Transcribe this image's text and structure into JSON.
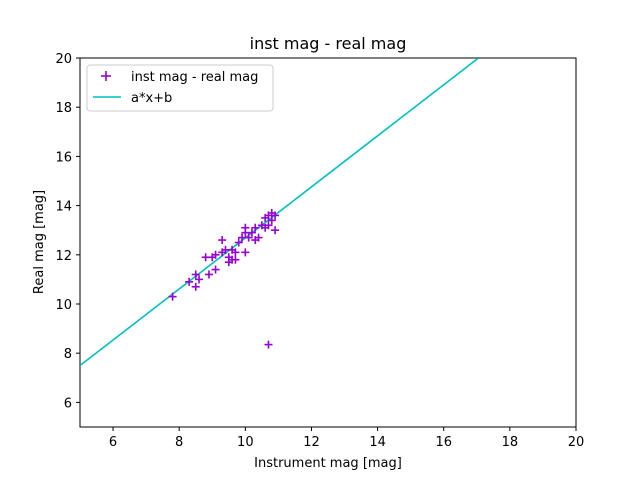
{
  "chart_data": {
    "type": "scatter",
    "title": "inst mag - real mag",
    "xlabel": "Instrument mag [mag]",
    "ylabel": "Real mag [mag]",
    "xlim": [
      5,
      20
    ],
    "ylim": [
      5,
      20
    ],
    "xticks": [
      6,
      8,
      10,
      12,
      14,
      16,
      18,
      20
    ],
    "yticks": [
      6,
      8,
      10,
      12,
      14,
      16,
      18,
      20
    ],
    "grid": false,
    "legend_position": "upper-left",
    "series": [
      {
        "name": "inst mag - real mag",
        "kind": "scatter",
        "marker": "plus",
        "color": "#9400d3",
        "points": [
          [
            7.8,
            10.3
          ],
          [
            8.3,
            10.9
          ],
          [
            8.5,
            11.2
          ],
          [
            8.5,
            10.7
          ],
          [
            8.6,
            11.0
          ],
          [
            8.8,
            11.9
          ],
          [
            8.9,
            11.2
          ],
          [
            9.0,
            11.9
          ],
          [
            9.1,
            12.0
          ],
          [
            9.1,
            11.4
          ],
          [
            9.3,
            12.1
          ],
          [
            9.3,
            12.6
          ],
          [
            9.4,
            12.2
          ],
          [
            9.5,
            11.9
          ],
          [
            9.5,
            11.7
          ],
          [
            9.6,
            12.2
          ],
          [
            9.6,
            11.8
          ],
          [
            9.7,
            12.1
          ],
          [
            9.7,
            11.8
          ],
          [
            9.8,
            12.5
          ],
          [
            9.9,
            12.7
          ],
          [
            10.0,
            12.9
          ],
          [
            10.0,
            13.1
          ],
          [
            10.0,
            12.1
          ],
          [
            10.1,
            12.7
          ],
          [
            10.2,
            12.9
          ],
          [
            10.3,
            13.1
          ],
          [
            10.3,
            12.6
          ],
          [
            10.4,
            12.7
          ],
          [
            10.5,
            13.2
          ],
          [
            10.6,
            13.5
          ],
          [
            10.6,
            13.1
          ],
          [
            10.7,
            13.6
          ],
          [
            10.7,
            13.2
          ],
          [
            10.8,
            13.7
          ],
          [
            10.8,
            13.4
          ],
          [
            10.9,
            13.6
          ],
          [
            10.9,
            13.0
          ],
          [
            10.7,
            8.35
          ]
        ]
      },
      {
        "name": "a*x+b",
        "kind": "line",
        "color": "#00bfbf",
        "x": [
          5,
          17.05
        ],
        "y": [
          7.5,
          20
        ]
      }
    ]
  }
}
